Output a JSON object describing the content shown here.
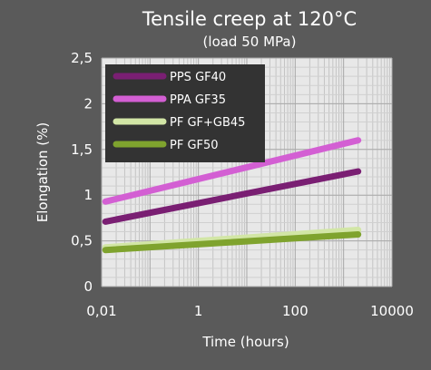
{
  "chart_data": {
    "type": "line",
    "title": "Tensile creep at 120°C",
    "subtitle": "(load 50 MPa)",
    "xlabel": "Time (hours)",
    "ylabel": "Elongation (%)",
    "x_scale": "log",
    "xlim": [
      0.01,
      10000
    ],
    "ylim": [
      0,
      2.5
    ],
    "x_ticks": [
      {
        "value": 0.01,
        "label": "0,01"
      },
      {
        "value": 1,
        "label": "1"
      },
      {
        "value": 100,
        "label": "100"
      },
      {
        "value": 10000,
        "label": "10000"
      }
    ],
    "y_ticks": [
      {
        "value": 0,
        "label": "0"
      },
      {
        "value": 0.5,
        "label": "0,5"
      },
      {
        "value": 1,
        "label": "1"
      },
      {
        "value": 1.5,
        "label": "1,5"
      },
      {
        "value": 2,
        "label": "2"
      },
      {
        "value": 2.5,
        "label": "2,5"
      }
    ],
    "grid": true,
    "legend_position": "top-left",
    "series": [
      {
        "name": "PPS GF40",
        "color": "#7a1f73",
        "x": [
          0.012,
          2000
        ],
        "y": [
          0.71,
          1.26
        ]
      },
      {
        "name": "PPA GF35",
        "color": "#d35fd3",
        "x": [
          0.012,
          2000
        ],
        "y": [
          0.93,
          1.6
        ]
      },
      {
        "name": "PF GF+GB45",
        "color": "#d2e6a6",
        "x": [
          0.012,
          2000
        ],
        "y": [
          0.43,
          0.62
        ]
      },
      {
        "name": "PF GF50",
        "color": "#7fa32e",
        "x": [
          0.012,
          2000
        ],
        "y": [
          0.4,
          0.57
        ]
      }
    ]
  }
}
